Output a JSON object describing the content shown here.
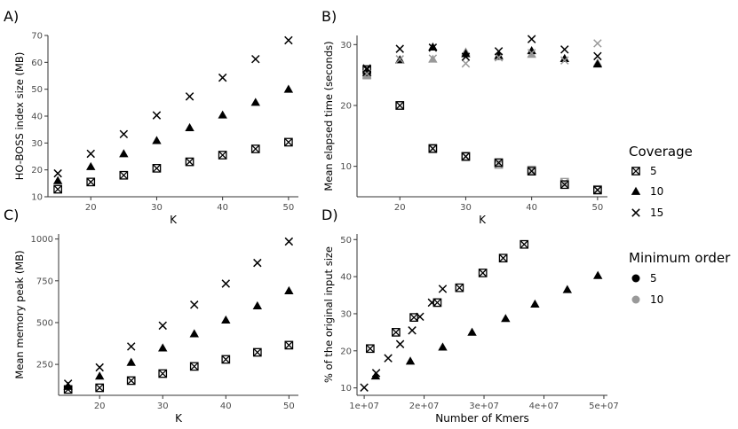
{
  "legend": {
    "coverage_title": "Coverage",
    "coverage_items": [
      {
        "label": "5",
        "shape": "square-x"
      },
      {
        "label": "10",
        "shape": "triangle"
      },
      {
        "label": "15",
        "shape": "cross"
      }
    ],
    "minorder_title": "Minimum order",
    "minorder_items": [
      {
        "label": "5",
        "color": "#000000"
      },
      {
        "label": "10",
        "color": "#999999"
      }
    ]
  },
  "colors": {
    "order5": "#000000",
    "order10": "#999999",
    "axis": "#333333",
    "text": "#4d4d4d"
  },
  "chart_data": [
    {
      "type": "scatter",
      "panel_label": "A)",
      "xlabel": "K",
      "ylabel": "HO-BOSS index size (MB)",
      "xlim": [
        13.5,
        51.5
      ],
      "ylim": [
        10,
        70
      ],
      "xticks": [
        20,
        30,
        40,
        50
      ],
      "yticks": [
        10,
        20,
        30,
        40,
        50,
        60,
        70
      ],
      "xtick_labels": [
        "20",
        "30",
        "40",
        "50"
      ],
      "ytick_labels": [
        "10",
        "20",
        "30",
        "40",
        "50",
        "60",
        "70"
      ],
      "series": [
        {
          "coverage": "5",
          "order": "5",
          "x": [
            15,
            20,
            25,
            30,
            35,
            40,
            45,
            50
          ],
          "y": [
            12.8,
            15.5,
            18.0,
            20.6,
            23.0,
            25.5,
            27.8,
            30.3
          ]
        },
        {
          "coverage": "10",
          "order": "5",
          "x": [
            15,
            20,
            25,
            30,
            35,
            40,
            45,
            50
          ],
          "y": [
            16.0,
            21.2,
            26.0,
            30.9,
            35.7,
            40.4,
            45.1,
            50.0
          ]
        },
        {
          "coverage": "15",
          "order": "5",
          "x": [
            15,
            20,
            25,
            30,
            35,
            40,
            45,
            50
          ],
          "y": [
            18.7,
            26.0,
            33.3,
            40.3,
            47.3,
            54.3,
            61.2,
            68.2
          ]
        }
      ]
    },
    {
      "type": "scatter",
      "panel_label": "B)",
      "xlabel": "K",
      "ylabel": "Mean elapsed time (seconds)",
      "xlim": [
        13.5,
        51.5
      ],
      "ylim": [
        5,
        31.5
      ],
      "xticks": [
        20,
        30,
        40,
        50
      ],
      "yticks": [
        10,
        20,
        30
      ],
      "xtick_labels": [
        "20",
        "30",
        "40",
        "50"
      ],
      "ytick_labels": [
        "10",
        "20",
        "30"
      ],
      "series": [
        {
          "coverage": "5",
          "order": "10",
          "x": [
            15,
            20,
            25,
            30,
            35,
            40,
            45,
            50
          ],
          "y": [
            25.0,
            20.0,
            13.0,
            11.7,
            10.3,
            9.4,
            7.4,
            6.2
          ]
        },
        {
          "coverage": "5",
          "order": "5",
          "x": [
            15,
            20,
            25,
            30,
            35,
            40,
            45,
            50
          ],
          "y": [
            25.9,
            20.0,
            12.9,
            11.6,
            10.6,
            9.2,
            7.0,
            6.1
          ]
        },
        {
          "coverage": "10",
          "order": "10",
          "x": [
            15,
            20,
            25,
            30,
            35,
            40,
            45,
            50
          ],
          "y": [
            25.0,
            27.5,
            27.6,
            28.8,
            28.0,
            28.4,
            27.7,
            27.0
          ]
        },
        {
          "coverage": "10",
          "order": "5",
          "x": [
            15,
            20,
            25,
            30,
            35,
            40,
            45,
            50
          ],
          "y": [
            25.4,
            27.5,
            29.6,
            28.5,
            28.2,
            29.0,
            27.7,
            26.8
          ]
        },
        {
          "coverage": "15",
          "order": "10",
          "x": [
            15,
            20,
            25,
            30,
            35,
            40,
            45,
            50
          ],
          "y": [
            25.2,
            27.6,
            27.7,
            26.9,
            27.9,
            28.6,
            27.4,
            30.2
          ]
        },
        {
          "coverage": "15",
          "order": "5",
          "x": [
            15,
            20,
            25,
            30,
            35,
            40,
            45,
            50
          ],
          "y": [
            26.1,
            29.3,
            29.5,
            28.0,
            28.9,
            30.9,
            29.2,
            28.1
          ]
        }
      ]
    },
    {
      "type": "scatter",
      "panel_label": "C)",
      "xlabel": "K",
      "ylabel": "Mean memory peak (MB)",
      "xlim": [
        13.5,
        51.5
      ],
      "ylim": [
        65,
        1030
      ],
      "xticks": [
        20,
        30,
        40,
        50
      ],
      "yticks": [
        250,
        500,
        750,
        1000
      ],
      "xtick_labels": [
        "20",
        "30",
        "40",
        "50"
      ],
      "ytick_labels": [
        "250",
        "500",
        "750",
        "1000"
      ],
      "series": [
        {
          "coverage": "5",
          "order": "5",
          "x": [
            15,
            20,
            25,
            30,
            35,
            40,
            45,
            50
          ],
          "y": [
            100,
            110,
            153,
            195,
            238,
            280,
            322,
            365
          ]
        },
        {
          "coverage": "10",
          "order": "5",
          "x": [
            15,
            20,
            25,
            30,
            35,
            40,
            45,
            50
          ],
          "y": [
            118,
            180,
            262,
            348,
            433,
            515,
            600,
            690
          ]
        },
        {
          "coverage": "15",
          "order": "5",
          "x": [
            15,
            20,
            25,
            30,
            35,
            40,
            45,
            50
          ],
          "y": [
            135,
            232,
            357,
            482,
            607,
            733,
            857,
            985
          ]
        }
      ]
    },
    {
      "type": "scatter",
      "panel_label": "D)",
      "xlabel": "Number of Kmers",
      "ylabel": "% of the original input size",
      "xlim": [
        8800000,
        50600000
      ],
      "ylim": [
        8,
        51.5
      ],
      "xticks": [
        10000000,
        20000000,
        30000000,
        40000000,
        50000000
      ],
      "yticks": [
        10,
        20,
        30,
        40,
        50
      ],
      "xtick_labels": [
        "1e+07",
        "2e+07",
        "3e+07",
        "4e+07",
        "5e+07"
      ],
      "ytick_labels": [
        "10",
        "20",
        "30",
        "40",
        "50"
      ],
      "series": [
        {
          "coverage": "5",
          "order": "5",
          "x": [
            11000000,
            15300000,
            18300000,
            22200000,
            25900000,
            29800000,
            33200000,
            36700000
          ],
          "y": [
            20.6,
            25.0,
            29.0,
            33.0,
            37.0,
            41.0,
            45.0,
            48.7
          ]
        },
        {
          "coverage": "10",
          "order": "5",
          "x": [
            11900000,
            17700000,
            23100000,
            28000000,
            33600000,
            38500000,
            43900000,
            49000000
          ],
          "y": [
            13.2,
            17.2,
            21.0,
            25.0,
            28.7,
            32.6,
            36.5,
            40.3
          ]
        },
        {
          "coverage": "15",
          "order": "5",
          "x": [
            10000000,
            12000000,
            14000000,
            16000000,
            18000000,
            19300000,
            21300000,
            23100000
          ],
          "y": [
            10.1,
            14.0,
            18.0,
            21.8,
            25.5,
            29.2,
            33.0,
            36.7
          ]
        }
      ]
    }
  ]
}
